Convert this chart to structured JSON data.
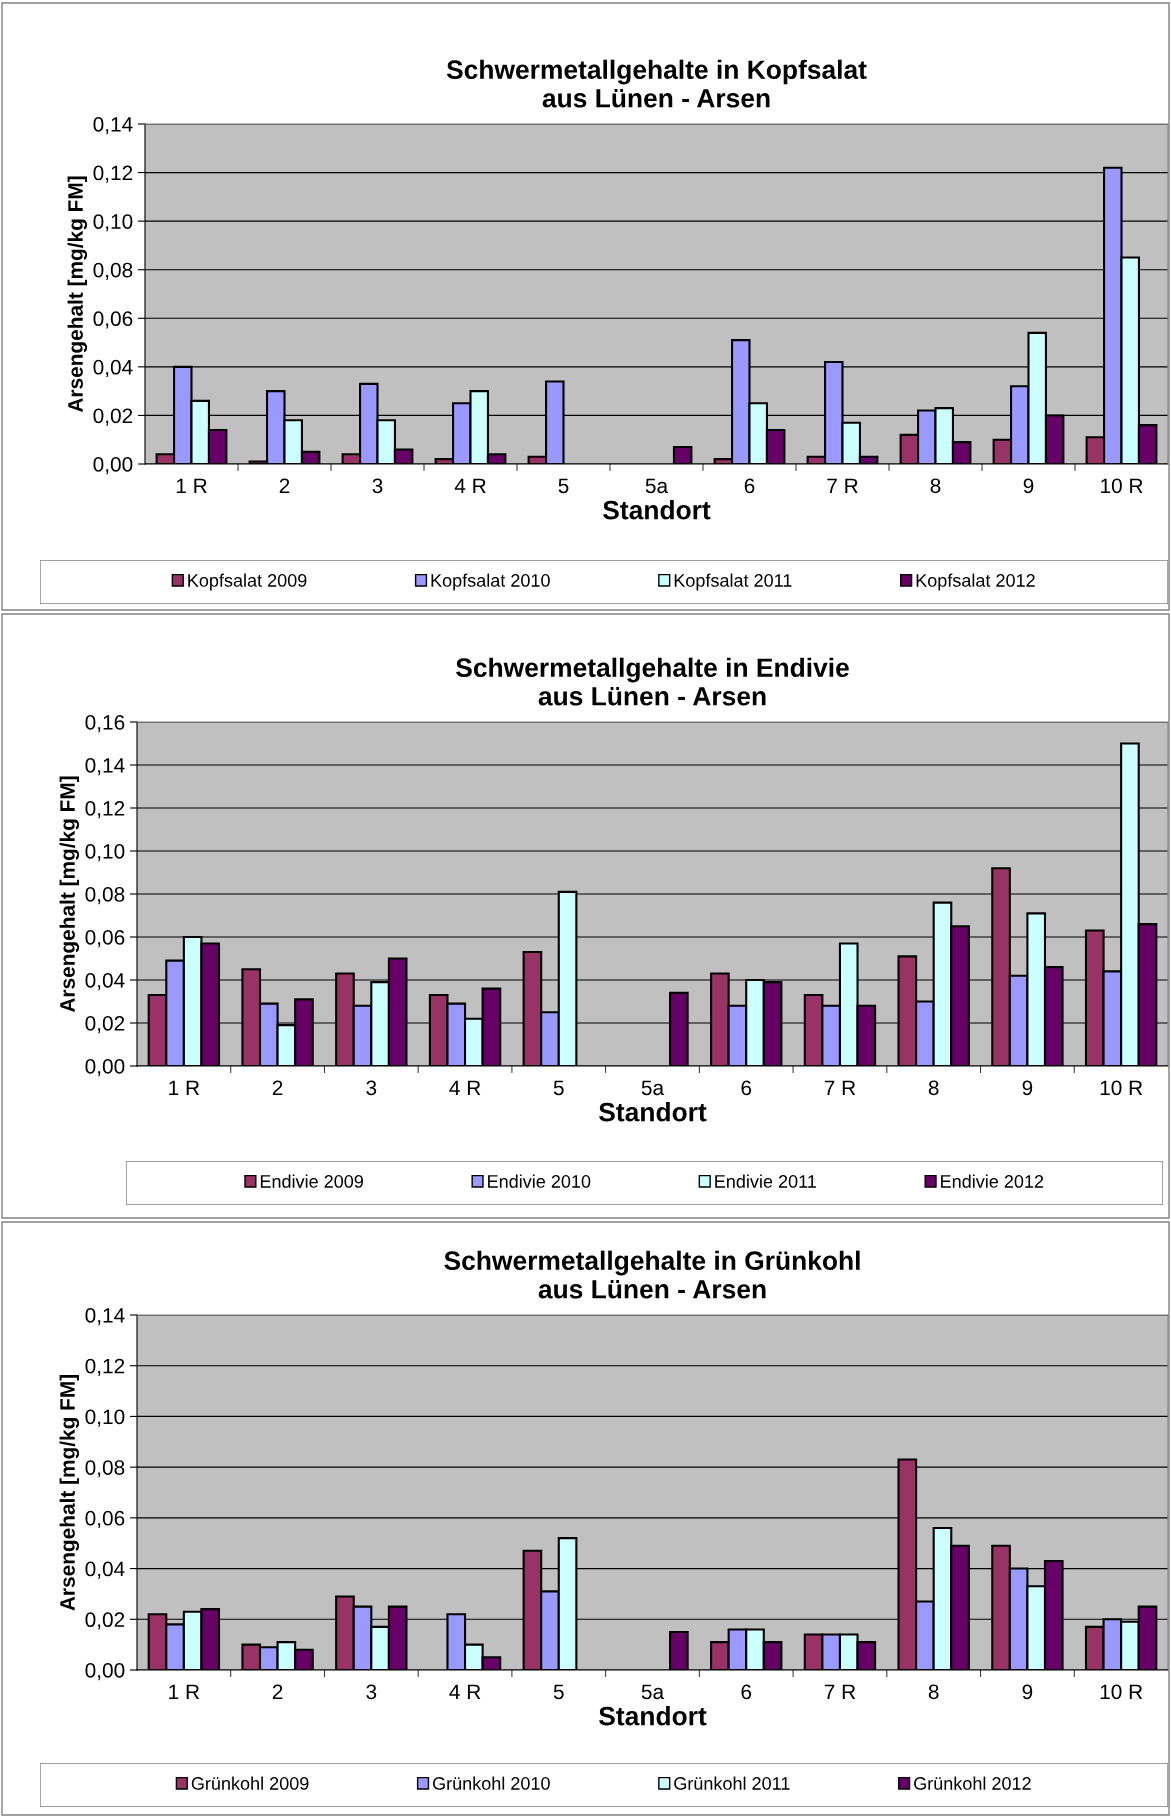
{
  "chart_data": [
    {
      "type": "bar",
      "title": "Schwermetallgehalte in Kopfsalat\naus Lünen - Arsen",
      "xlabel": "Standort",
      "ylabel": "Arsengehalt [mg/kg FM]",
      "categories": [
        "1 R",
        "2",
        "3",
        "4 R",
        "5",
        "5a",
        "6",
        "7 R",
        "8",
        "9",
        "10 R"
      ],
      "series": [
        {
          "name": "Kopfsalat 2009",
          "color": "#993366",
          "values": [
            0.004,
            0.001,
            0.004,
            0.002,
            0.003,
            null,
            0.002,
            0.003,
            0.012,
            0.01,
            0.011
          ]
        },
        {
          "name": "Kopfsalat 2010",
          "color": "#9999ff",
          "values": [
            0.04,
            0.03,
            0.033,
            0.025,
            0.034,
            null,
            0.051,
            0.042,
            0.022,
            0.032,
            0.122
          ]
        },
        {
          "name": "Kopfsalat 2011",
          "color": "#ccffff",
          "values": [
            0.026,
            0.018,
            0.018,
            0.03,
            null,
            null,
            0.025,
            0.017,
            0.023,
            0.054,
            0.085
          ]
        },
        {
          "name": "Kopfsalat 2012",
          "color": "#660066",
          "values": [
            0.014,
            0.005,
            0.006,
            0.004,
            null,
            0.007,
            0.014,
            0.003,
            0.009,
            0.02,
            0.016
          ]
        }
      ],
      "ylim": [
        0,
        0.14
      ],
      "yticks": [
        {
          "value": 0,
          "label": "0,00"
        },
        {
          "value": 0.02,
          "label": "0,02"
        },
        {
          "value": 0.04,
          "label": "0,04"
        },
        {
          "value": 0.06,
          "label": "0,06"
        },
        {
          "value": 0.08,
          "label": "0,08"
        },
        {
          "value": 0.1,
          "label": "0,10"
        },
        {
          "value": 0.12,
          "label": "0,12"
        },
        {
          "value": 0.14,
          "label": "0,14"
        }
      ],
      "grid": "y",
      "legend": "bottom"
    },
    {
      "type": "bar",
      "title": "Schwermetallgehalte in Endivie\naus Lünen - Arsen",
      "xlabel": "Standort",
      "ylabel": "Arsengehalt [mg/kg FM]",
      "categories": [
        "1 R",
        "2",
        "3",
        "4 R",
        "5",
        "5a",
        "6",
        "7 R",
        "8",
        "9",
        "10 R"
      ],
      "series": [
        {
          "name": "Endivie 2009",
          "color": "#993366",
          "values": [
            0.033,
            0.045,
            0.043,
            0.033,
            0.053,
            null,
            0.043,
            0.033,
            0.051,
            0.092,
            0.063
          ]
        },
        {
          "name": "Endivie 2010",
          "color": "#9999ff",
          "values": [
            0.049,
            0.029,
            0.028,
            0.029,
            0.025,
            null,
            0.028,
            0.028,
            0.03,
            0.042,
            0.044
          ]
        },
        {
          "name": "Endivie 2011",
          "color": "#ccffff",
          "values": [
            0.06,
            0.019,
            0.039,
            0.022,
            0.081,
            null,
            0.04,
            0.057,
            0.076,
            0.071,
            0.15
          ]
        },
        {
          "name": "Endivie 2012",
          "color": "#660066",
          "values": [
            0.057,
            0.031,
            0.05,
            0.036,
            null,
            0.034,
            0.039,
            0.028,
            0.065,
            0.046,
            0.066
          ]
        }
      ],
      "ylim": [
        0,
        0.16
      ],
      "yticks": [
        {
          "value": 0,
          "label": "0,00"
        },
        {
          "value": 0.02,
          "label": "0,02"
        },
        {
          "value": 0.04,
          "label": "0,04"
        },
        {
          "value": 0.06,
          "label": "0,06"
        },
        {
          "value": 0.08,
          "label": "0,08"
        },
        {
          "value": 0.1,
          "label": "0,10"
        },
        {
          "value": 0.12,
          "label": "0,12"
        },
        {
          "value": 0.14,
          "label": "0,14"
        },
        {
          "value": 0.16,
          "label": "0,16"
        }
      ],
      "grid": "y",
      "legend": "bottom"
    },
    {
      "type": "bar",
      "title": "Schwermetallgehalte in Grünkohl\naus Lünen - Arsen",
      "xlabel": "Standort",
      "ylabel": "Arsengehalt [mg/kg FM]",
      "categories": [
        "1 R",
        "2",
        "3",
        "4 R",
        "5",
        "5a",
        "6",
        "7 R",
        "8",
        "9",
        "10 R"
      ],
      "series": [
        {
          "name": "Grünkohl 2009",
          "color": "#993366",
          "values": [
            0.022,
            0.01,
            0.029,
            null,
            0.047,
            null,
            0.011,
            0.014,
            0.083,
            0.049,
            0.017
          ]
        },
        {
          "name": "Grünkohl 2010",
          "color": "#9999ff",
          "values": [
            0.018,
            0.009,
            0.025,
            0.022,
            0.031,
            null,
            0.016,
            0.014,
            0.027,
            0.04,
            0.02
          ]
        },
        {
          "name": "Grünkohl 2011",
          "color": "#ccffff",
          "values": [
            0.023,
            0.011,
            0.017,
            0.01,
            0.052,
            null,
            0.016,
            0.014,
            0.056,
            0.033,
            0.019
          ]
        },
        {
          "name": "Grünkohl 2012",
          "color": "#660066",
          "values": [
            0.024,
            0.008,
            0.025,
            0.005,
            null,
            0.015,
            0.011,
            0.011,
            0.049,
            0.043,
            0.025
          ]
        }
      ],
      "ylim": [
        0,
        0.14
      ],
      "yticks": [
        {
          "value": 0,
          "label": "0,00"
        },
        {
          "value": 0.02,
          "label": "0,02"
        },
        {
          "value": 0.04,
          "label": "0,04"
        },
        {
          "value": 0.06,
          "label": "0,06"
        },
        {
          "value": 0.08,
          "label": "0,08"
        },
        {
          "value": 0.1,
          "label": "0,10"
        },
        {
          "value": 0.12,
          "label": "0,12"
        },
        {
          "value": 0.14,
          "label": "0,14"
        }
      ],
      "grid": "y",
      "legend": "bottom"
    }
  ]
}
